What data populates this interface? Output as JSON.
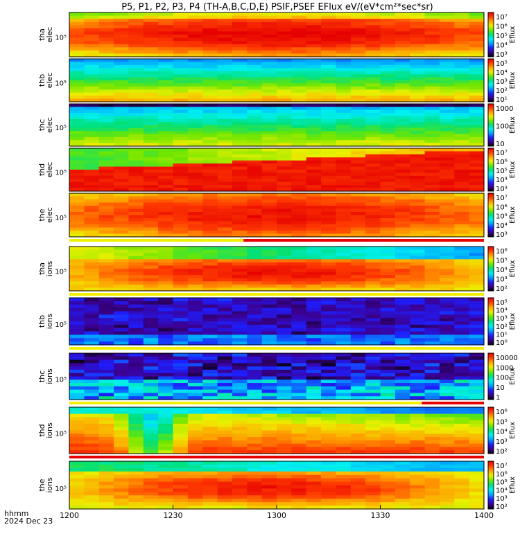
{
  "title": "P5, P1, P2, P3, P4 (TH-A,B,C,D,E) PSIF,PSEF EFlux eV/(eV*cm²*sec*sr)",
  "footer": {
    "line1": "hhmm",
    "line2": "2024 Dec 23"
  },
  "chart_data": {
    "type": "heatmap",
    "x_axis": {
      "ticks": [
        "1200",
        "1230",
        "1300",
        "1330",
        "1400"
      ]
    },
    "panels": [
      {
        "probe": "tha",
        "species": "elec",
        "ytick": "10⁵",
        "colorbar_label": "Eflux",
        "colorbar_ticks": [
          "10⁷",
          "10⁶",
          "10⁵",
          "10⁴",
          "10³"
        ],
        "scale_bar": "none"
      },
      {
        "probe": "thb",
        "species": "elec",
        "ytick": "10⁵",
        "colorbar_label": "Eflux",
        "colorbar_ticks": [
          "10⁵",
          "10⁴",
          "10³",
          "10²",
          "10¹"
        ],
        "scale_bar": "none"
      },
      {
        "probe": "thc",
        "species": "elec",
        "ytick": "10⁵",
        "colorbar_label": "Eflux",
        "colorbar_ticks": [
          "1000",
          "100",
          "10"
        ],
        "scale_bar": "none"
      },
      {
        "probe": "thd",
        "species": "elec",
        "ytick": "10⁵",
        "colorbar_label": "Eflux",
        "colorbar_ticks": [
          "10⁷",
          "10⁶",
          "10⁵",
          "10⁴",
          "10³"
        ],
        "scale_bar": "none"
      },
      {
        "probe": "the",
        "species": "elec",
        "ytick": "10⁵",
        "colorbar_label": "Eflux",
        "colorbar_ticks": [
          "10⁷",
          "10⁶",
          "10⁵",
          "10⁴",
          "10³"
        ],
        "scale_bar": "yellow_then_red"
      },
      {
        "probe": "tha",
        "species": "ions",
        "ytick": "10⁵",
        "colorbar_label": "Eflux",
        "colorbar_ticks": [
          "10⁶",
          "10⁵",
          "10⁴",
          "10³",
          "10²"
        ],
        "scale_bar": "yellow"
      },
      {
        "probe": "thb",
        "species": "ions",
        "ytick": "10⁵",
        "colorbar_label": "Eflux",
        "colorbar_ticks": [
          "10⁵",
          "10⁴",
          "10³",
          "10²",
          "10¹",
          "10⁰"
        ],
        "scale_bar": "yellow"
      },
      {
        "probe": "thc",
        "species": "ions",
        "ytick": "10⁵",
        "colorbar_label": "Eflux",
        "colorbar_ticks": [
          "10000",
          "1000",
          "100",
          "10",
          "1"
        ],
        "scale_bar": "yellow_then_red"
      },
      {
        "probe": "thd",
        "species": "ions",
        "ytick": "10⁵",
        "colorbar_label": "Eflux",
        "colorbar_ticks": [
          "10⁶",
          "10⁵",
          "10⁴",
          "10³",
          "10²"
        ],
        "scale_bar": "red"
      },
      {
        "probe": "the",
        "species": "ions",
        "ytick": "10⁵",
        "colorbar_label": "Eflux",
        "colorbar_ticks": [
          "10⁷",
          "10⁶",
          "10⁵",
          "10⁴",
          "10³",
          "10²"
        ],
        "scale_bar": "none"
      }
    ],
    "colormap": [
      "#000000",
      "#3c0091",
      "#1e1eff",
      "#00a0ff",
      "#00f0f0",
      "#00e07a",
      "#6ee600",
      "#ecf000",
      "#ffa000",
      "#ff3c00",
      "#e60000"
    ],
    "colors": {
      "yellow_bar": "#f0f000",
      "red_bar": "#e60000"
    }
  }
}
